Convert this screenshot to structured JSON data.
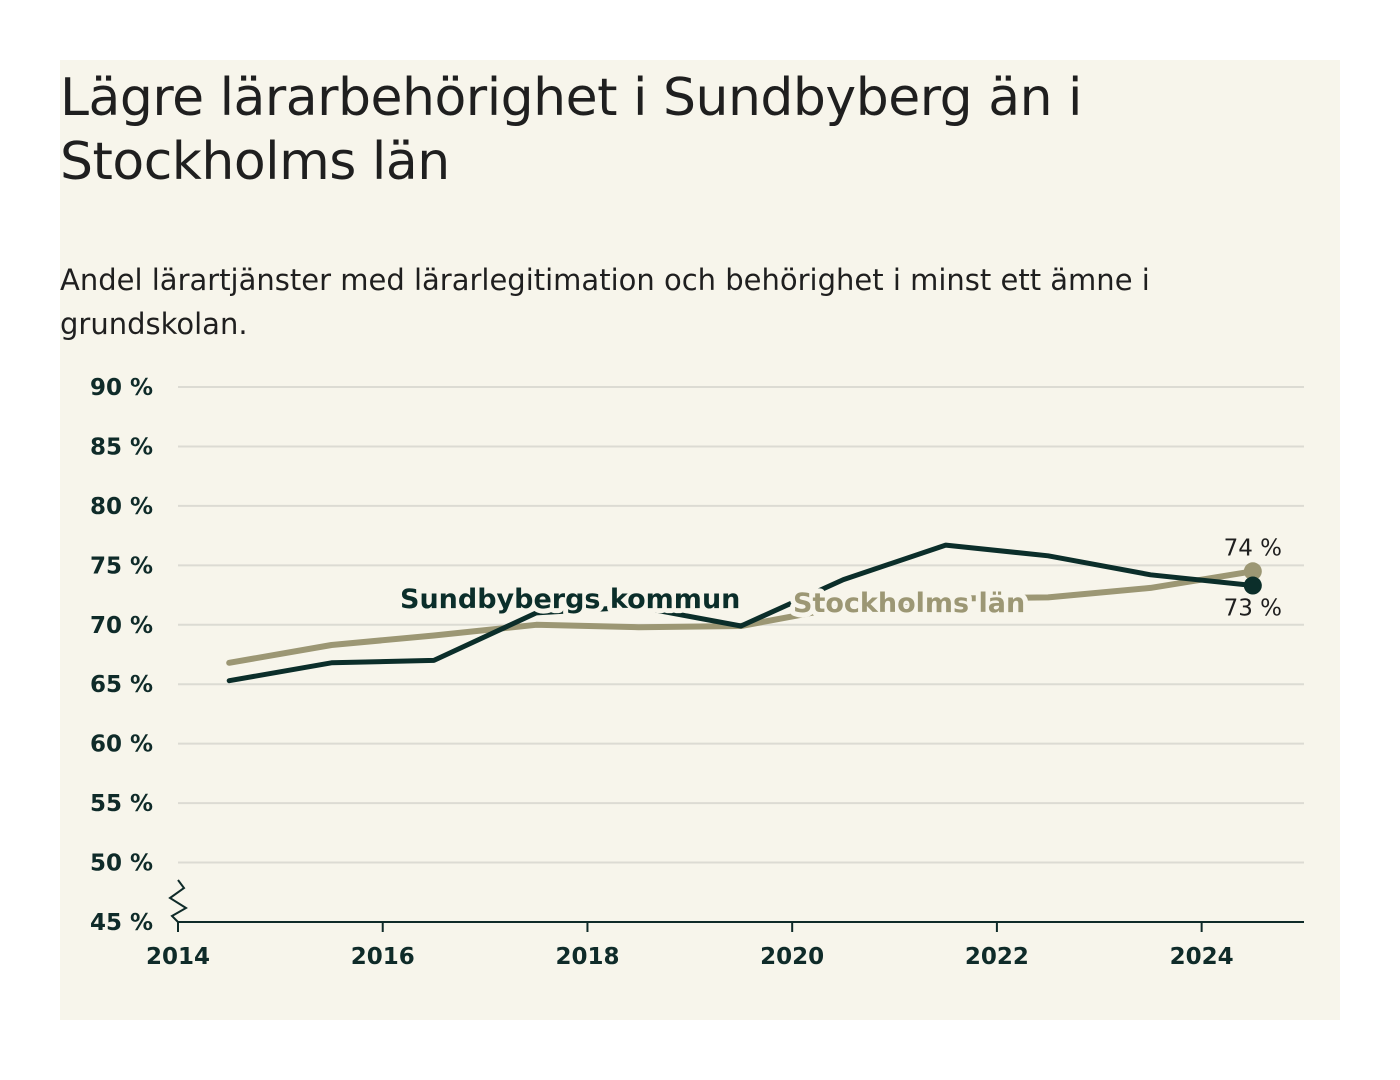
{
  "colors": {
    "background": "#f7f5eb",
    "sundbyberg": "#0b2e2a",
    "stockholm": "#9c9774",
    "grid": "#dcdbd3",
    "axis": "#0f2b29"
  },
  "chart_data": {
    "type": "line",
    "title": "Lägre lärarbehörighet i Sundbyberg än i Stockholms län",
    "subtitle": "Andel lärartjänster med lärarlegitimation och behörighet i minst ett ämne i grundskolan.",
    "ylim": [
      45,
      90
    ],
    "y_ticks": [
      45,
      50,
      55,
      60,
      65,
      70,
      75,
      80,
      85,
      90
    ],
    "y_tick_labels": [
      "45 %",
      "50 %",
      "55 %",
      "60 %",
      "65 %",
      "70 %",
      "75 %",
      "80 %",
      "85 %",
      "90 %"
    ],
    "y_axis_break": true,
    "xlim": [
      2014,
      2025
    ],
    "x_ticks": [
      2014,
      2016,
      2018,
      2020,
      2022,
      2024
    ],
    "x_tick_labels": [
      "2014",
      "2016",
      "2018",
      "2020",
      "2022",
      "2024"
    ],
    "grid": "horizontal",
    "x": [
      2014.5,
      2015.5,
      2016.5,
      2017.5,
      2018.5,
      2019.5,
      2020.5,
      2021.5,
      2022.5,
      2023.5,
      2024.5
    ],
    "series": [
      {
        "name": "Sundbybergs kommun",
        "color_key": "sundbyberg",
        "values": [
          65.3,
          66.8,
          67.0,
          71.0,
          71.5,
          69.9,
          73.8,
          76.7,
          75.8,
          74.2,
          73.3
        ],
        "end_label": "73 %"
      },
      {
        "name": "Stockholms län",
        "color_key": "stockholm",
        "values": [
          66.8,
          68.3,
          69.1,
          70.0,
          69.8,
          69.9,
          71.5,
          72.2,
          72.3,
          73.1,
          74.5
        ],
        "end_label": "74 %"
      }
    ]
  }
}
